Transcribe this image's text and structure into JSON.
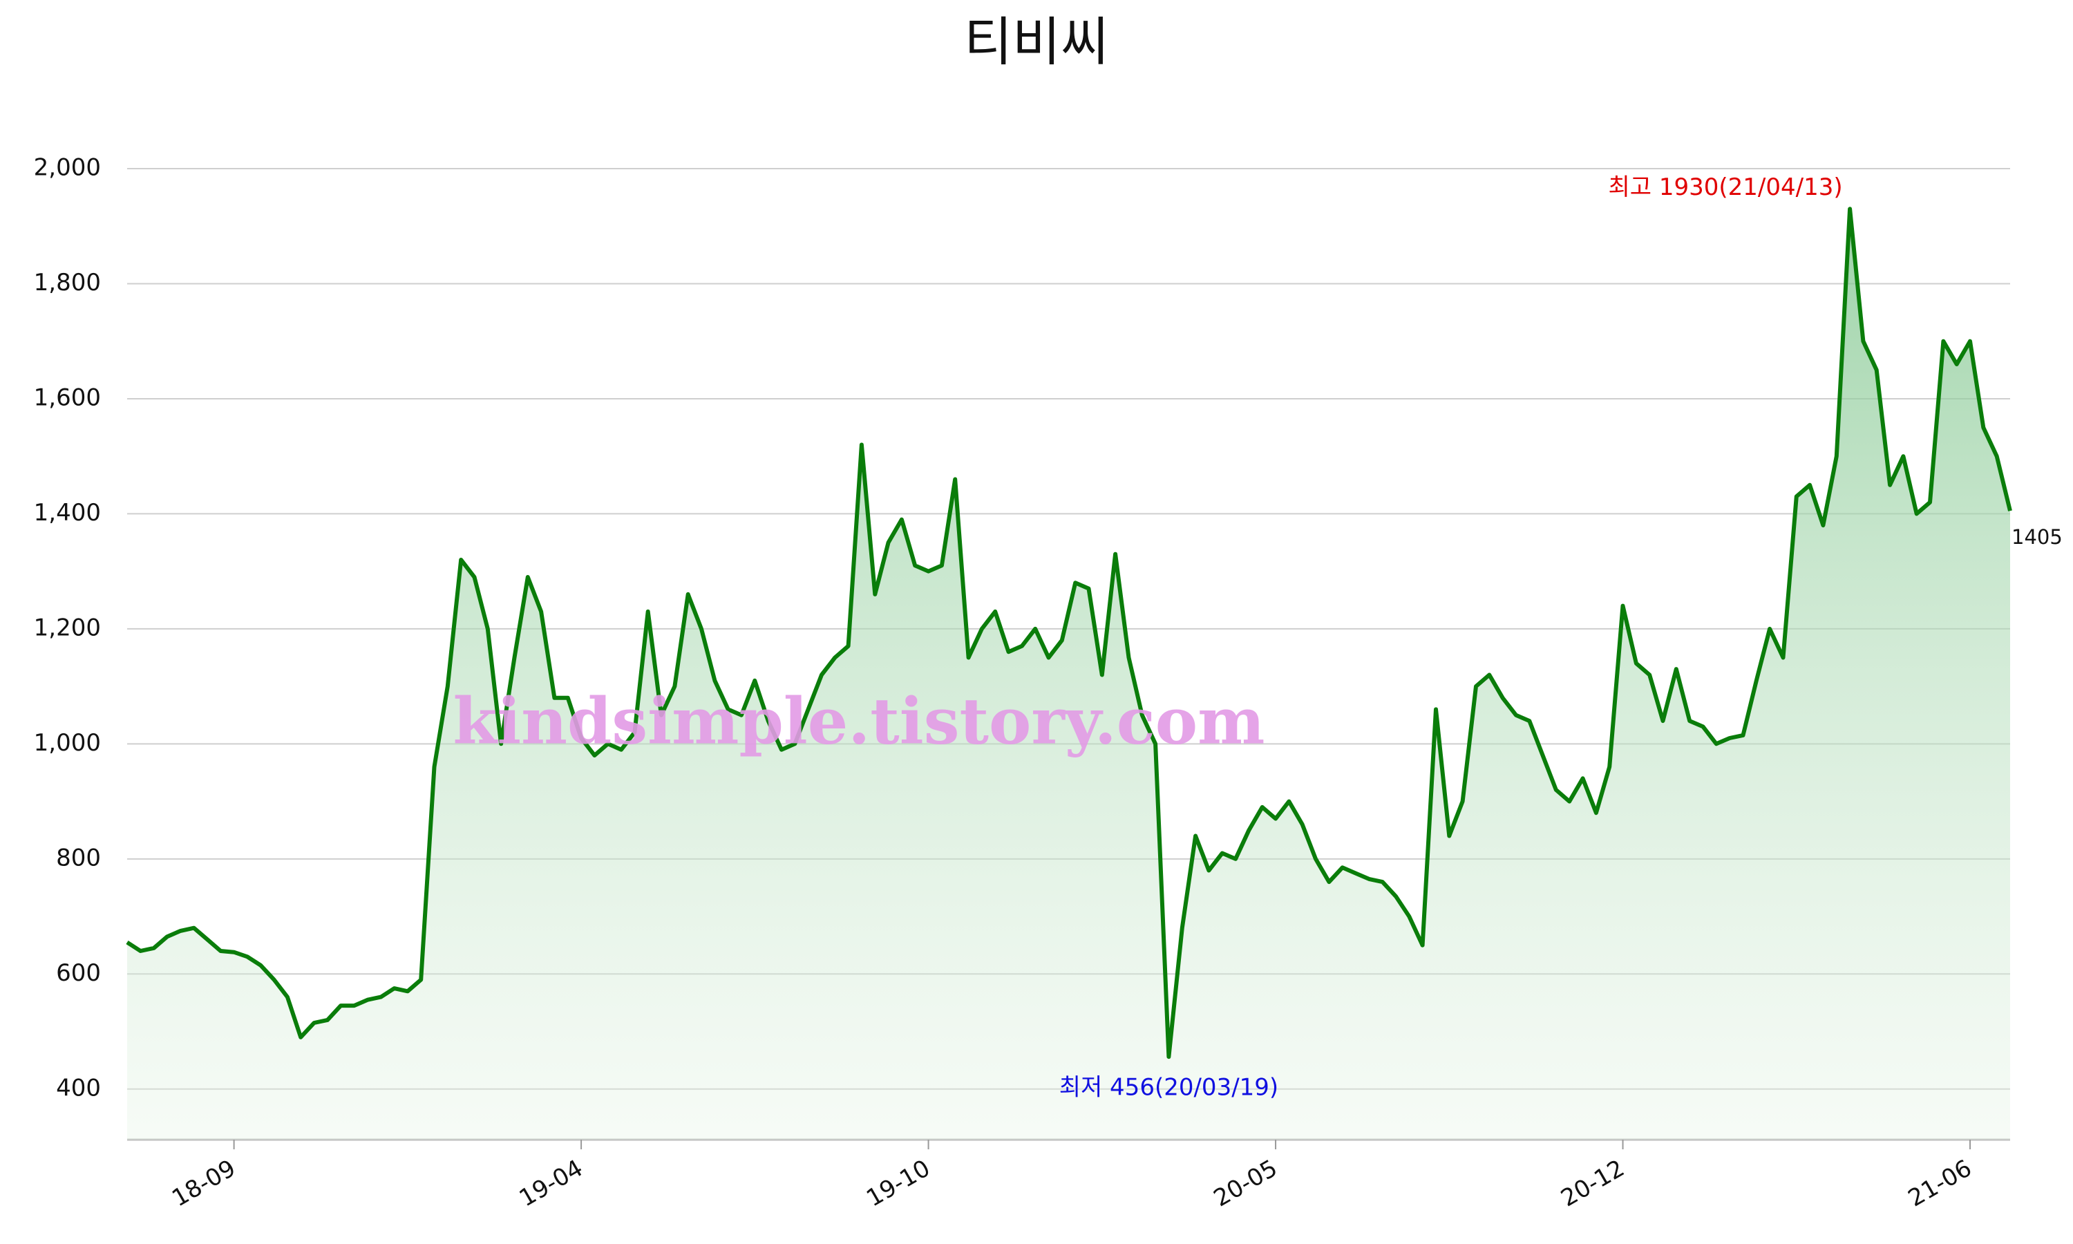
{
  "chart_data": {
    "type": "line",
    "title": "티비씨",
    "categories": [
      null,
      null,
      null,
      null,
      null,
      null,
      null,
      null,
      "18-09",
      null,
      null,
      null,
      null,
      null,
      null,
      null,
      null,
      null,
      null,
      null,
      null,
      null,
      null,
      null,
      null,
      null,
      null,
      null,
      null,
      null,
      null,
      null,
      null,
      null,
      "19-04",
      null,
      null,
      null,
      null,
      null,
      null,
      null,
      null,
      null,
      null,
      null,
      null,
      null,
      null,
      null,
      null,
      null,
      null,
      null,
      null,
      null,
      null,
      null,
      null,
      null,
      "19-10",
      null,
      null,
      null,
      null,
      null,
      null,
      null,
      null,
      null,
      null,
      null,
      null,
      null,
      null,
      null,
      null,
      null,
      null,
      null,
      null,
      null,
      null,
      null,
      null,
      null,
      "20-05",
      null,
      null,
      null,
      null,
      null,
      null,
      null,
      null,
      null,
      null,
      null,
      null,
      null,
      null,
      null,
      null,
      null,
      null,
      null,
      null,
      null,
      null,
      null,
      null,
      null,
      "20-12",
      null,
      null,
      null,
      null,
      null,
      null,
      null,
      null,
      null,
      null,
      null,
      null,
      null,
      null,
      null,
      null,
      null,
      null,
      null,
      null,
      null,
      null,
      null,
      null,
      null,
      "21-06",
      null,
      null,
      null
    ],
    "series": [
      {
        "name": "티비씨",
        "color": "#0a7d0a",
        "values": [
          655,
          640,
          645,
          665,
          675,
          680,
          660,
          640,
          638,
          630,
          615,
          590,
          560,
          490,
          515,
          520,
          545,
          545,
          555,
          560,
          575,
          570,
          590,
          960,
          1100,
          1320,
          1290,
          1200,
          1000,
          1150,
          1290,
          1230,
          1080,
          1080,
          1010,
          980,
          1000,
          990,
          1020,
          1230,
          1050,
          1100,
          1260,
          1200,
          1110,
          1060,
          1050,
          1110,
          1040,
          990,
          1000,
          1060,
          1120,
          1150,
          1170,
          1520,
          1260,
          1350,
          1390,
          1310,
          1300,
          1310,
          1460,
          1150,
          1200,
          1230,
          1160,
          1170,
          1200,
          1150,
          1180,
          1280,
          1270,
          1120,
          1330,
          1150,
          1050,
          1000,
          456,
          680,
          840,
          780,
          810,
          800,
          850,
          890,
          870,
          900,
          860,
          800,
          760,
          785,
          775,
          765,
          760,
          735,
          700,
          650,
          1060,
          840,
          900,
          1100,
          1120,
          1080,
          1050,
          1040,
          980,
          920,
          900,
          940,
          880,
          960,
          1240,
          1140,
          1120,
          1040,
          1130,
          1040,
          1030,
          1000,
          1010,
          1015,
          1110,
          1200,
          1150,
          1430,
          1450,
          1380,
          1500,
          1930,
          1700,
          1650,
          1450,
          1500,
          1400,
          1420,
          1700,
          1660,
          1700,
          1550,
          1500,
          1405
        ]
      }
    ],
    "ylim": [
      312,
      2000
    ],
    "yticks": [
      {
        "value": 400,
        "label": "400"
      },
      {
        "value": 600,
        "label": "600"
      },
      {
        "value": 800,
        "label": "800"
      },
      {
        "value": 1000,
        "label": "1,000"
      },
      {
        "value": 1200,
        "label": "1,200"
      },
      {
        "value": 1400,
        "label": "1,400"
      },
      {
        "value": 1600,
        "label": "1,600"
      },
      {
        "value": 1800,
        "label": "1,800"
      },
      {
        "value": 2000,
        "label": "2,000"
      }
    ],
    "grid": true,
    "annotations": [
      {
        "text": "최고 1930(21/04/13)",
        "color": "#e00000"
      },
      {
        "text": "최저 456(20/03/19)",
        "color": "#1010e0"
      }
    ],
    "watermark": "kindsimple.tistory.com"
  }
}
